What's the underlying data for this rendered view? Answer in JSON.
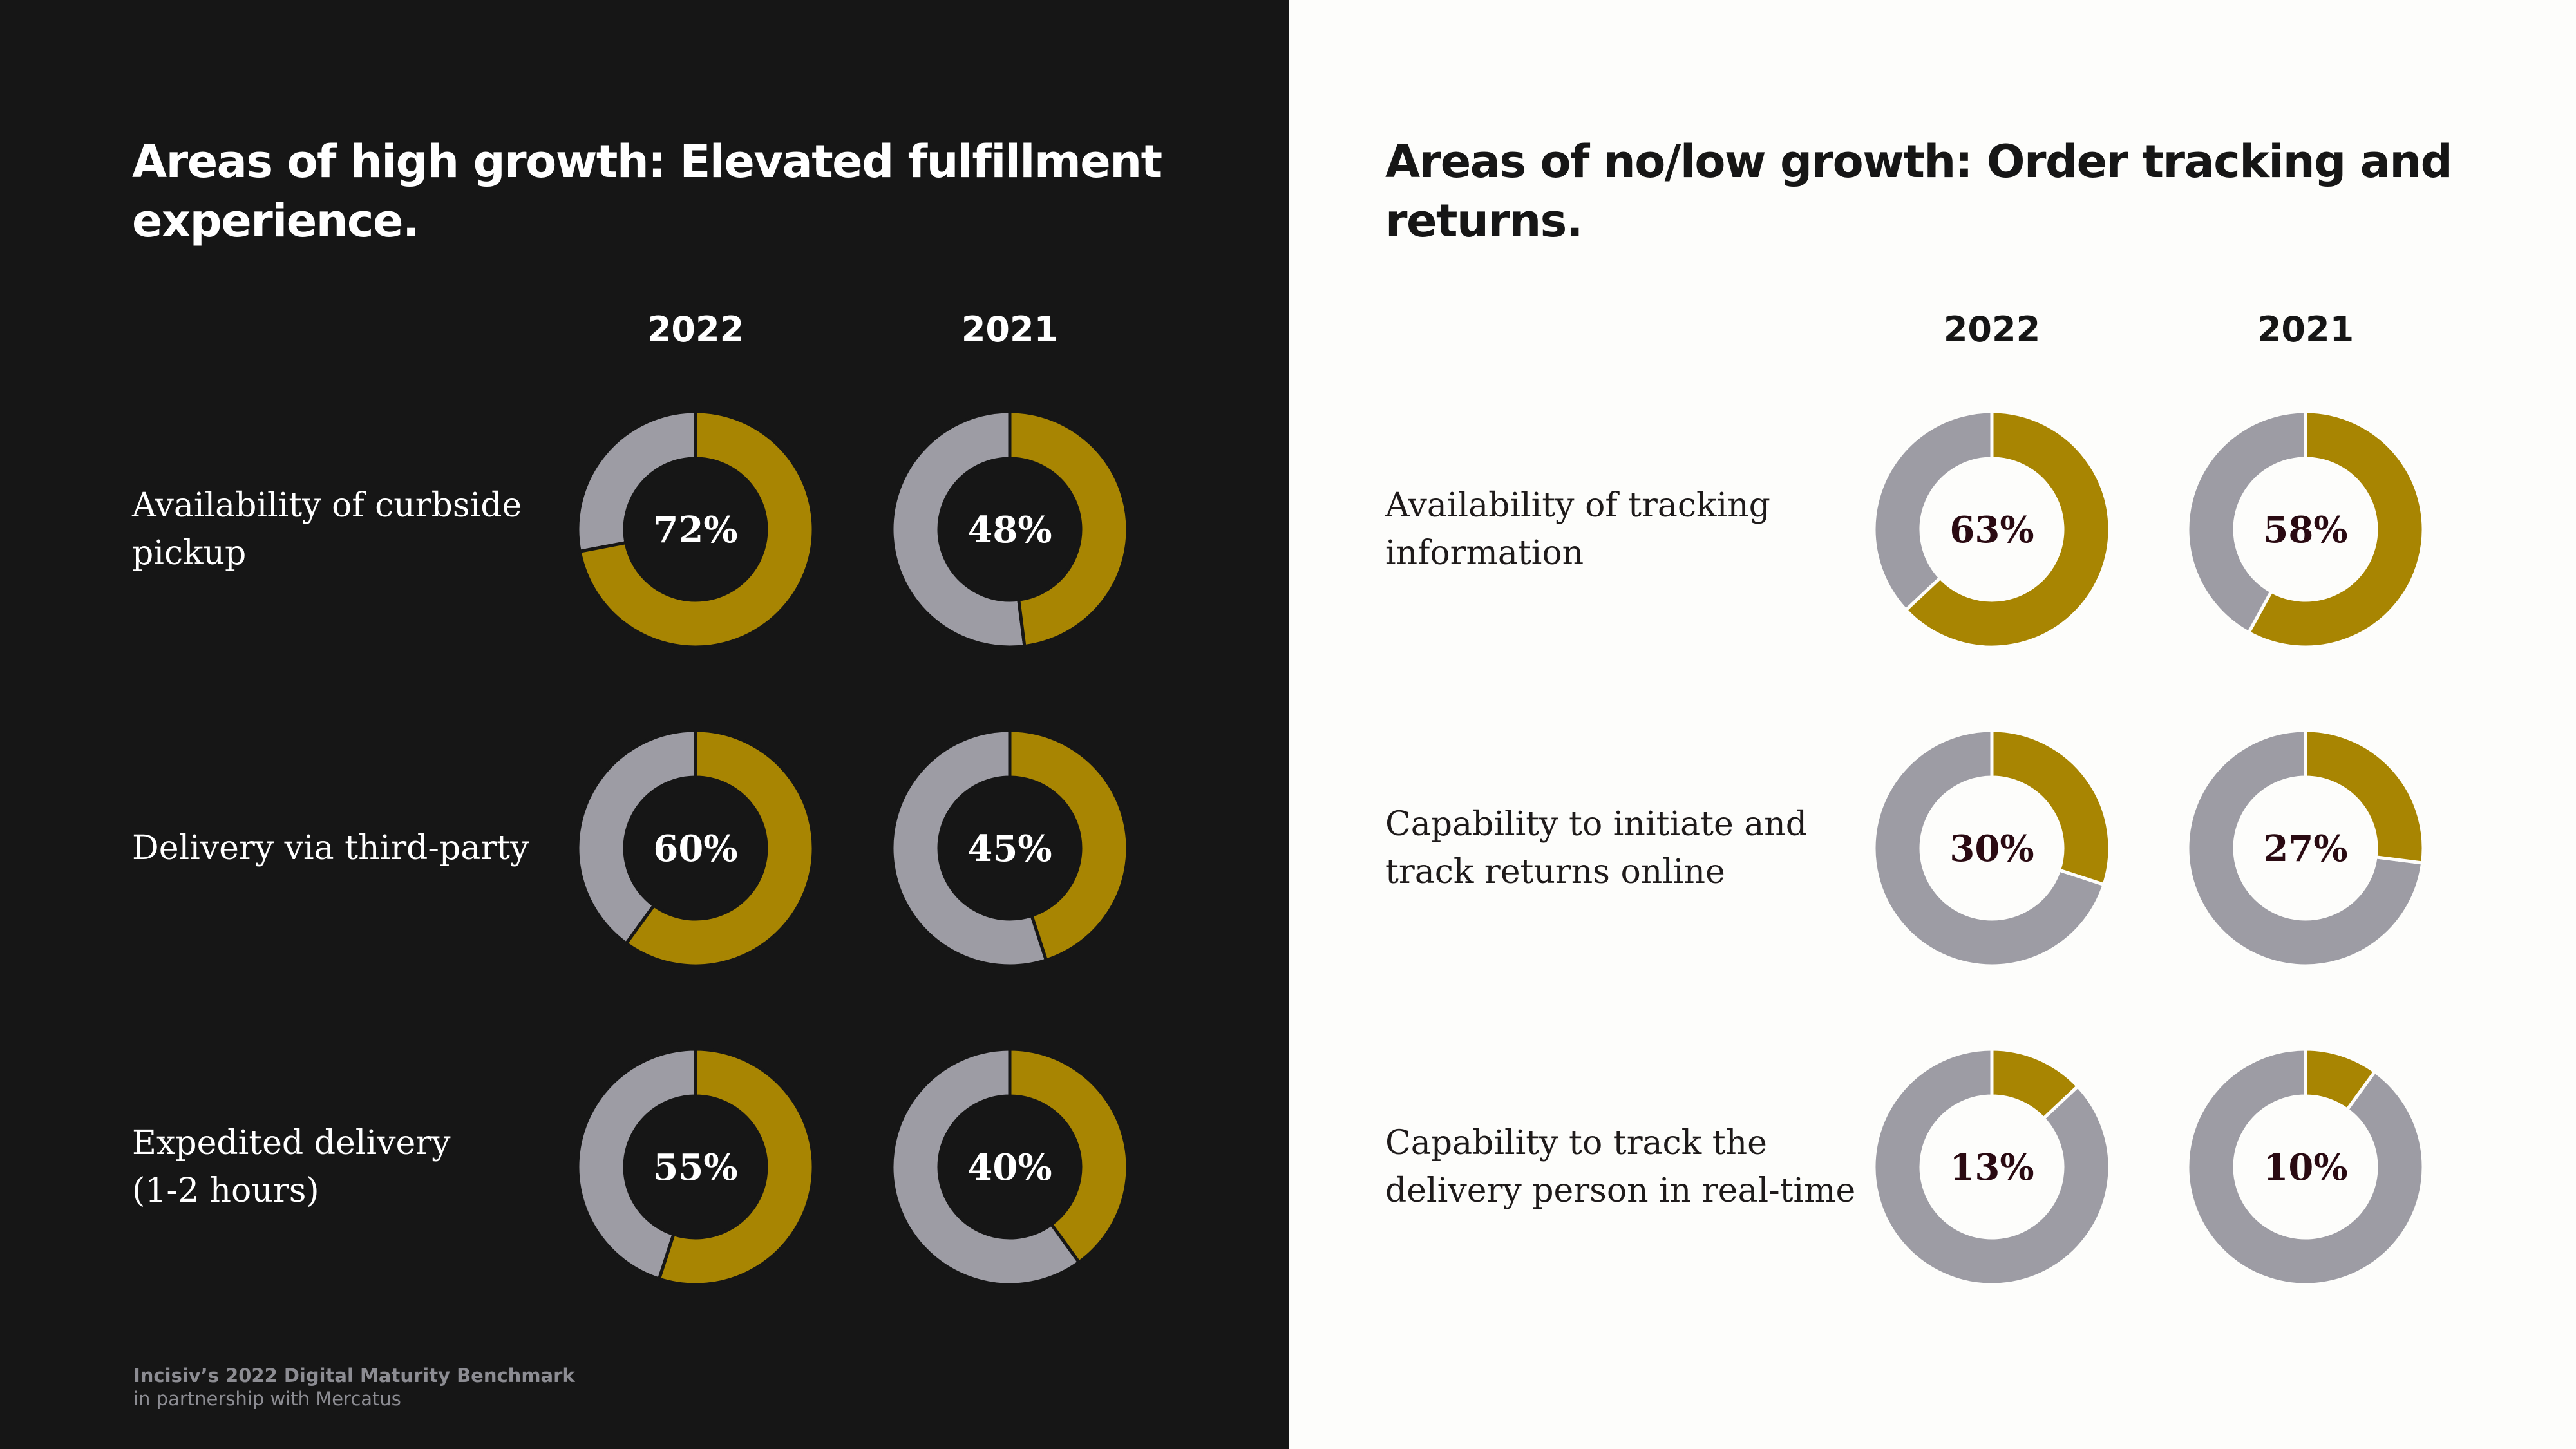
{
  "colors": {
    "dark_background": "#161616",
    "light_background": "#fdfdfb",
    "accent_gold": "#a88502",
    "ring_gray": "#9d9ca4",
    "text_white": "#ffffff",
    "text_dark": "#2a0a12"
  },
  "left_panel": {
    "title": "Areas of high growth: Elevated fulfillment\nexperience.",
    "year_headers": [
      "2022",
      "2021"
    ]
  },
  "right_panel": {
    "title": "Areas of no/low growth: Order tracking and\nreturns.",
    "year_headers": [
      "2022",
      "2021"
    ]
  },
  "chart_data": [
    {
      "type": "donut",
      "title": "Areas of high growth: Elevated fulfillment experience.",
      "categories": [
        "Availability of curbside\npickup",
        "Delivery via third-party",
        "Expedited delivery\n(1-2 hours)"
      ],
      "series": [
        {
          "name": "2022",
          "values": [
            72,
            60,
            55
          ]
        },
        {
          "name": "2021",
          "values": [
            48,
            45,
            40
          ]
        }
      ],
      "value_suffix": "%"
    },
    {
      "type": "donut",
      "title": "Areas of no/low growth: Order tracking and returns.",
      "categories": [
        "Availability of tracking\ninformation",
        "Capability to initiate and\ntrack returns online",
        "Capability to track the\ndelivery person in real-time"
      ],
      "series": [
        {
          "name": "2022",
          "values": [
            63,
            30,
            13
          ]
        },
        {
          "name": "2021",
          "values": [
            58,
            27,
            10
          ]
        }
      ],
      "value_suffix": "%"
    }
  ],
  "footer": {
    "source_title": "Incisiv’s 2022 Digital Maturity Benchmark",
    "source_subtitle": "in partnership with Mercatus"
  }
}
